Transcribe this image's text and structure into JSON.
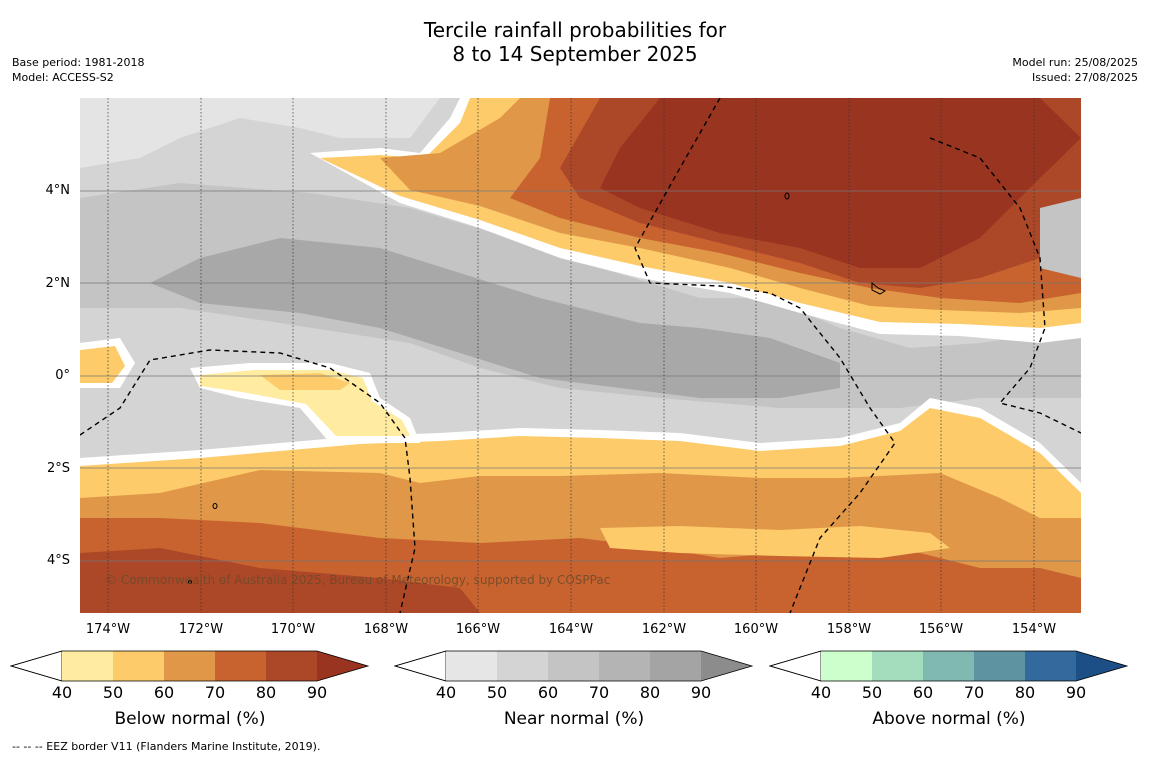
{
  "title": {
    "line1": "Tercile rainfall probabilities for",
    "line2": "8 to 14 September 2025"
  },
  "meta_left": {
    "base_period": "Base period: 1981-2018",
    "model": "Model: ACCESS-S2"
  },
  "meta_right": {
    "model_run": "Model run: 25/08/2025",
    "issued": "Issued: 27/08/2025"
  },
  "lat_labels": [
    "4°N",
    "2°N",
    "0°",
    "2°S",
    "4°S"
  ],
  "lon_labels": [
    "174°W",
    "172°W",
    "170°W",
    "168°W",
    "166°W",
    "164°W",
    "162°W",
    "160°W",
    "158°W",
    "156°W",
    "154°W"
  ],
  "copyright": "© Commonwealth of Australia 2025, Bureau of Meteorology, supported by COSPPac",
  "colorbars": [
    {
      "label": "Below normal (%)",
      "ticks": [
        "40",
        "50",
        "60",
        "70",
        "80",
        "90"
      ],
      "colors": [
        "#ffeca0",
        "#fdcb6a",
        "#e09848",
        "#c86330",
        "#ac4828"
      ],
      "extend_color": "#983420"
    },
    {
      "label": "Near normal (%)",
      "ticks": [
        "40",
        "50",
        "60",
        "70",
        "80",
        "90"
      ],
      "colors": [
        "#e6e6e6",
        "#d4d4d4",
        "#c4c4c4",
        "#b4b4b4",
        "#a4a4a4"
      ],
      "extend_color": "#8c8c8c"
    },
    {
      "label": "Above normal (%)",
      "ticks": [
        "40",
        "50",
        "60",
        "70",
        "80",
        "90"
      ],
      "colors": [
        "#ccffcc",
        "#a4dcbe",
        "#80b8b2",
        "#5e93a2",
        "#336a9e"
      ],
      "extend_color": "#1c4f86"
    }
  ],
  "eez_note": "-- -- -- EEZ border V11 (Flanders Marine Institute, 2019)."
}
